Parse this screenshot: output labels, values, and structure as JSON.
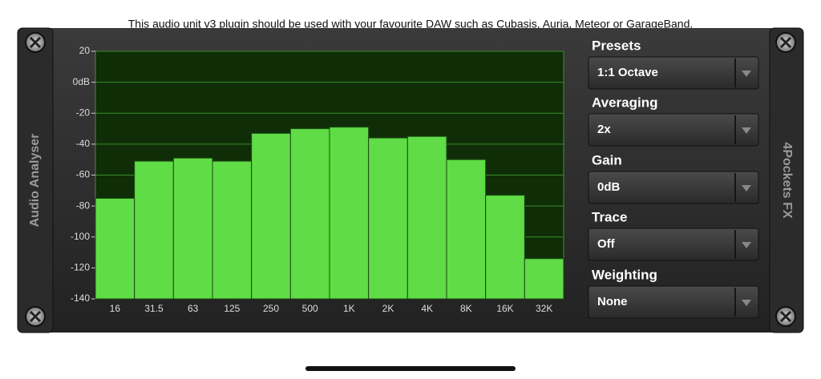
{
  "notice": "This audio unit v3 plugin should be used with your favourite DAW such as Cubasis, Auria, Meteor or GarageBand.",
  "left_label": "Audio Analyser",
  "right_label": "4Pockets FX",
  "chart_data": {
    "type": "bar",
    "categories": [
      "16",
      "31.5",
      "63",
      "125",
      "250",
      "500",
      "1K",
      "2K",
      "4K",
      "8K",
      "16K",
      "32K"
    ],
    "values": [
      -75,
      -51,
      -49,
      -51,
      -33,
      -30,
      -29,
      -36,
      -35,
      -50,
      -73,
      -114
    ],
    "color": "#5fdc46",
    "ylim": [
      -140,
      20
    ],
    "yticks": [
      20,
      {
        "value": 0,
        "label": "0dB"
      },
      -20,
      -40,
      -60,
      -80,
      -100,
      -120,
      -140
    ],
    "grid": true
  },
  "controls": [
    {
      "label": "Presets",
      "value": "1:1 Octave"
    },
    {
      "label": "Averaging",
      "value": "2x"
    },
    {
      "label": "Gain",
      "value": "0dB"
    },
    {
      "label": "Trace",
      "value": "Off"
    },
    {
      "label": "Weighting",
      "value": "None"
    }
  ]
}
